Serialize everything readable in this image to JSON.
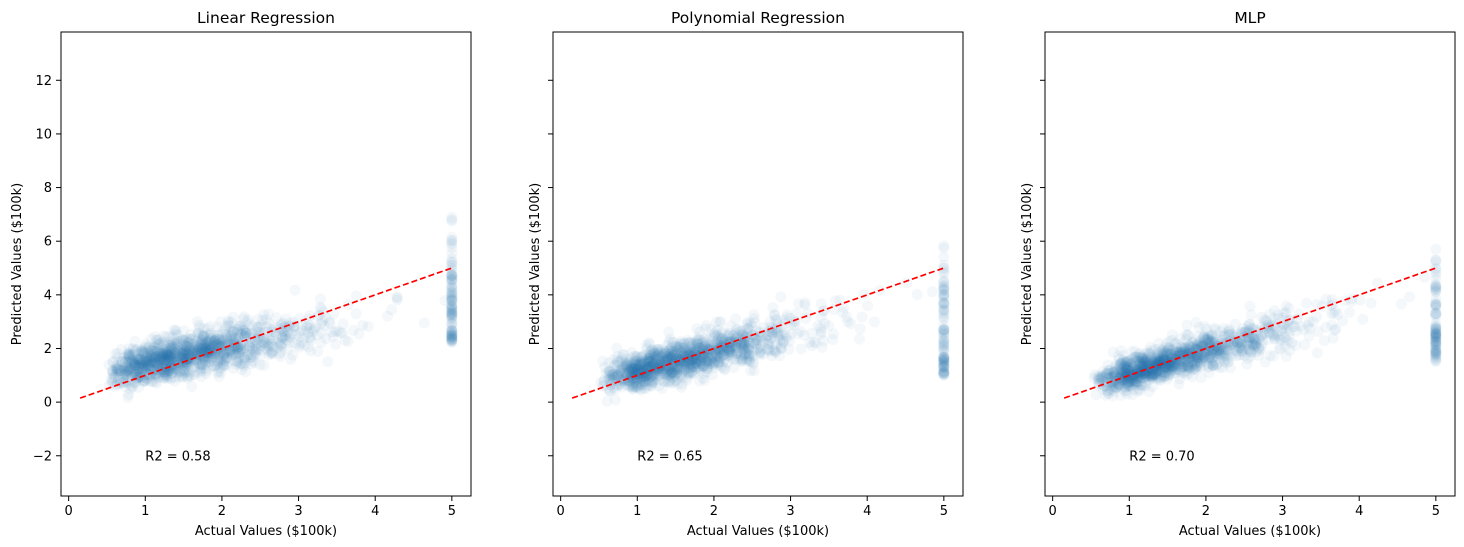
{
  "chart_data": [
    {
      "type": "scatter",
      "title": "Linear Regression",
      "xlabel": "Actual Values ($100k)",
      "ylabel": "Predicted Values ($100k)",
      "xlim": [
        -0.1,
        5.25
      ],
      "ylim": [
        -3.5,
        13.8
      ],
      "xticks": [
        0,
        1,
        2,
        3,
        4,
        5
      ],
      "yticks": [
        -2,
        0,
        2,
        4,
        6,
        8,
        10,
        12
      ],
      "annotation": "R2 = 0.58",
      "reference_line": {
        "x": [
          0.15,
          5.0
        ],
        "y": [
          0.15,
          5.0
        ],
        "color": "#ff0000",
        "style": "dashed"
      },
      "point_color": "#1f77b4",
      "point_alpha": 0.05,
      "model": {
        "slope": 0.62,
        "intercept": 0.78,
        "noise_sd": 0.45,
        "cap_spread": [
          2.2,
          7.0
        ]
      },
      "density_note": "dense cloud between x 0.5-3, vertical stripe at x=5"
    },
    {
      "type": "scatter",
      "title": "Polynomial Regression",
      "xlabel": "Actual Values ($100k)",
      "ylabel": "Predicted Values ($100k)",
      "xlim": [
        -0.1,
        5.25
      ],
      "ylim": [
        -3.5,
        13.8
      ],
      "xticks": [
        0,
        1,
        2,
        3,
        4,
        5
      ],
      "yticks": [
        -2,
        0,
        2,
        4,
        6,
        8,
        10,
        12
      ],
      "annotation": "R2 = 0.65",
      "reference_line": {
        "x": [
          0.15,
          5.0
        ],
        "y": [
          0.15,
          5.0
        ],
        "color": "#ff0000",
        "style": "dashed"
      },
      "point_color": "#1f77b4",
      "point_alpha": 0.05,
      "model": {
        "slope": 0.72,
        "intercept": 0.45,
        "noise_sd": 0.42,
        "cap_spread": [
          1.0,
          6.2
        ]
      }
    },
    {
      "type": "scatter",
      "title": "MLP",
      "xlabel": "Actual Values ($100k)",
      "ylabel": "Predicted Values ($100k)",
      "xlim": [
        -0.1,
        5.25
      ],
      "ylim": [
        -3.5,
        13.8
      ],
      "xticks": [
        0,
        1,
        2,
        3,
        4,
        5
      ],
      "yticks": [
        -2,
        0,
        2,
        4,
        6,
        8,
        10,
        12
      ],
      "annotation": "R2 = 0.70",
      "reference_line": {
        "x": [
          0.15,
          5.0
        ],
        "y": [
          0.15,
          5.0
        ],
        "color": "#ff0000",
        "style": "dashed"
      },
      "point_color": "#1f77b4",
      "point_alpha": 0.05,
      "model": {
        "slope": 0.82,
        "intercept": 0.25,
        "noise_sd": 0.38,
        "cap_spread": [
          1.5,
          6.0
        ]
      }
    }
  ]
}
